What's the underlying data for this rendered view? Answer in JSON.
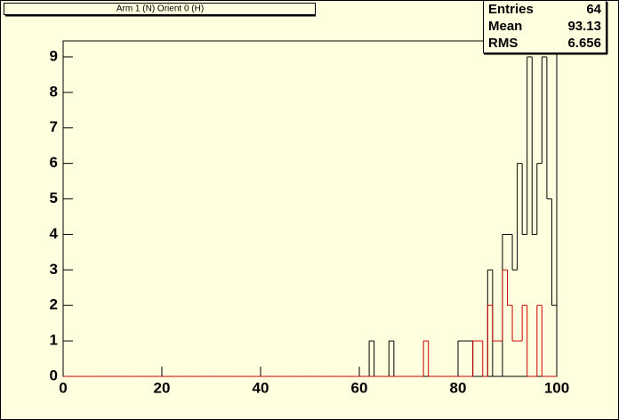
{
  "chart_data": {
    "type": "histogram",
    "title": "Arm 1 (N) Orient 0 (H)",
    "bins": [
      0,
      1,
      2,
      3,
      4,
      5,
      6,
      7,
      8,
      9,
      10,
      11,
      12,
      13,
      14,
      15,
      16,
      17,
      18,
      19,
      20,
      21,
      22,
      23,
      24,
      25,
      26,
      27,
      28,
      29,
      30,
      31,
      32,
      33,
      34,
      35,
      36,
      37,
      38,
      39,
      40,
      41,
      42,
      43,
      44,
      45,
      46,
      47,
      48,
      49,
      50,
      51,
      52,
      53,
      54,
      55,
      56,
      57,
      58,
      59,
      60,
      61,
      62,
      63,
      64,
      65,
      66,
      67,
      68,
      69,
      70,
      71,
      72,
      73,
      74,
      75,
      76,
      77,
      78,
      79,
      80,
      81,
      82,
      83,
      84,
      85,
      86,
      87,
      88,
      89,
      90,
      91,
      92,
      93,
      94,
      95,
      96,
      97,
      98,
      99,
      100
    ],
    "series": [
      {
        "color": "#000000",
        "values": [
          0,
          0,
          0,
          0,
          0,
          0,
          0,
          0,
          0,
          0,
          0,
          0,
          0,
          0,
          0,
          0,
          0,
          0,
          0,
          0,
          0,
          0,
          0,
          0,
          0,
          0,
          0,
          0,
          0,
          0,
          0,
          0,
          0,
          0,
          0,
          0,
          0,
          0,
          0,
          0,
          0,
          0,
          0,
          0,
          0,
          0,
          0,
          0,
          0,
          0,
          0,
          0,
          0,
          0,
          0,
          0,
          0,
          0,
          0,
          0,
          0,
          0,
          1,
          0,
          0,
          0,
          1,
          0,
          0,
          0,
          0,
          0,
          0,
          0,
          0,
          0,
          0,
          0,
          0,
          0,
          1,
          1,
          1,
          0,
          0,
          0,
          3,
          0,
          0,
          4,
          4,
          3,
          6,
          4,
          9,
          4,
          6,
          9,
          5,
          2
        ]
      },
      {
        "color": "#cc0000",
        "values": [
          0,
          0,
          0,
          0,
          0,
          0,
          0,
          0,
          0,
          0,
          0,
          0,
          0,
          0,
          0,
          0,
          0,
          0,
          0,
          0,
          0,
          0,
          0,
          0,
          0,
          0,
          0,
          0,
          0,
          0,
          0,
          0,
          0,
          0,
          0,
          0,
          0,
          0,
          0,
          0,
          0,
          0,
          0,
          0,
          0,
          0,
          0,
          0,
          0,
          0,
          0,
          0,
          0,
          0,
          0,
          0,
          0,
          0,
          0,
          0,
          0,
          0,
          0,
          0,
          0,
          0,
          0,
          0,
          0,
          0,
          0,
          0,
          0,
          1,
          0,
          0,
          0,
          0,
          0,
          0,
          0,
          0,
          0,
          1,
          1,
          0,
          2,
          1,
          1,
          3,
          2,
          1,
          1,
          2,
          0,
          0,
          2,
          0,
          0,
          0
        ]
      }
    ],
    "xlim": [
      0,
      100
    ],
    "xticks": [
      0,
      20,
      40,
      60,
      80,
      100
    ],
    "ylim": [
      0,
      9.45
    ],
    "yticks": [
      0,
      1,
      2,
      3,
      4,
      5,
      6,
      7,
      8,
      9
    ],
    "stats": [
      {
        "label": "Entries",
        "value": 64
      },
      {
        "label": "Mean",
        "value": 93.13
      },
      {
        "label": "RMS",
        "value": 6.656
      }
    ]
  }
}
